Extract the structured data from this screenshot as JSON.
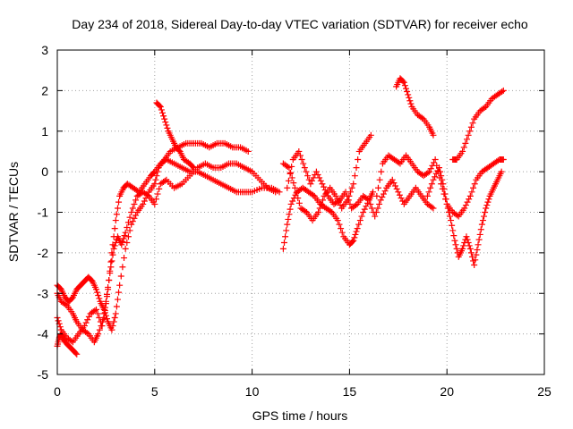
{
  "chart_data": {
    "type": "scatter",
    "title": "Day 234 of 2018, Sidereal Day-to-day VTEC variation (SDTVAR) for receiver echo",
    "xlabel": "GPS time / hours",
    "ylabel": "SDTVAR / TECUs",
    "xlim": [
      0,
      25
    ],
    "ylim": [
      -5,
      3
    ],
    "xticks": [
      "0",
      "5",
      "10",
      "15",
      "20",
      "25"
    ],
    "yticks": [
      "-5",
      "-4",
      "-3",
      "-2",
      "-1",
      "0",
      "1",
      "2",
      "3"
    ],
    "grid": true,
    "marker": "plus",
    "color": "#ff0000",
    "series": [
      {
        "x": [
          0.0,
          0.2,
          0.5,
          0.8,
          1.0,
          1.3,
          1.6,
          1.9,
          2.1,
          2.4,
          2.6,
          2.8,
          3.0,
          3.2,
          3.4,
          3.6,
          3.9,
          4.2,
          4.5,
          4.8,
          5.0,
          5.3,
          5.6,
          6.0,
          6.4,
          6.8,
          7.2,
          7.6,
          8.0,
          8.4,
          8.8,
          9.2,
          9.6,
          10.0,
          10.5,
          11.0,
          11.4
        ],
        "y": [
          -3.0,
          -3.2,
          -3.3,
          -3.5,
          -3.7,
          -3.9,
          -4.0,
          -4.2,
          -4.0,
          -3.6,
          -2.9,
          -2.0,
          -1.2,
          -0.6,
          -0.4,
          -0.3,
          -0.4,
          -0.5,
          -0.3,
          -0.1,
          0.0,
          0.2,
          0.3,
          0.2,
          0.1,
          0.0,
          0.0,
          -0.1,
          -0.2,
          -0.3,
          -0.4,
          -0.5,
          -0.5,
          -0.5,
          -0.4,
          -0.4,
          -0.5
        ]
      },
      {
        "x": [
          0.0,
          0.2,
          0.5,
          0.8,
          1.1,
          1.4,
          1.7,
          2.0,
          2.3,
          2.5,
          2.7,
          2.9,
          3.1,
          3.3,
          3.5,
          3.8,
          4.1,
          4.4,
          4.7,
          5.0,
          5.3,
          5.6,
          6.0,
          6.4,
          6.8,
          7.2,
          7.6,
          8.0,
          8.4,
          8.8,
          9.2,
          9.6,
          10.0,
          10.4,
          10.8,
          11.2
        ],
        "y": [
          -3.6,
          -3.9,
          -4.1,
          -4.2,
          -4.0,
          -3.8,
          -3.5,
          -3.4,
          -3.8,
          -3.2,
          -2.5,
          -1.9,
          -1.6,
          -1.8,
          -1.5,
          -1.0,
          -0.6,
          -0.5,
          -0.6,
          -0.8,
          -0.3,
          -0.2,
          -0.4,
          -0.3,
          -0.1,
          0.1,
          0.2,
          0.1,
          0.1,
          0.2,
          0.2,
          0.1,
          0.0,
          -0.2,
          -0.4,
          -0.5
        ]
      },
      {
        "x": [
          0.0,
          0.2,
          0.4,
          0.6,
          0.8,
          1.0,
          1.2,
          1.4,
          1.6,
          1.8,
          2.0,
          2.2,
          2.4,
          2.6,
          2.8,
          3.0,
          3.2,
          3.5,
          3.8,
          4.1,
          4.4,
          4.7,
          5.0,
          5.2,
          5.5,
          5.8,
          6.2,
          6.6,
          7.0,
          7.4,
          7.8,
          8.2,
          8.6,
          9.0,
          9.4,
          9.8
        ],
        "y": [
          -2.8,
          -2.9,
          -3.1,
          -3.2,
          -3.1,
          -2.9,
          -2.8,
          -2.7,
          -2.6,
          -2.7,
          -2.9,
          -3.2,
          -3.4,
          -3.7,
          -3.9,
          -3.5,
          -2.8,
          -1.9,
          -1.3,
          -1.0,
          -0.8,
          -0.5,
          -0.3,
          0.1,
          0.3,
          0.5,
          0.6,
          0.7,
          0.7,
          0.7,
          0.6,
          0.7,
          0.7,
          0.6,
          0.6,
          0.5
        ]
      },
      {
        "x": [
          0.0,
          0.1,
          0.2,
          0.3,
          0.4,
          0.6,
          0.8,
          1.0
        ],
        "y": [
          -4.3,
          -4.1,
          -4.0,
          -4.1,
          -4.2,
          -4.3,
          -4.4,
          -4.5
        ]
      },
      {
        "x": [
          5.1,
          5.3,
          5.5,
          5.7,
          5.9,
          6.1,
          6.3,
          6.5,
          6.8,
          7.0
        ],
        "y": [
          1.7,
          1.6,
          1.3,
          1.0,
          0.8,
          0.6,
          0.5,
          0.3,
          0.2,
          0.1
        ]
      },
      {
        "x": [
          11.6,
          11.8,
          12.0,
          12.3,
          12.6,
          12.9,
          13.2,
          13.5,
          13.8,
          14.1,
          14.4,
          14.7,
          15.0,
          15.2,
          15.4,
          15.7,
          16.0,
          16.2
        ],
        "y": [
          -1.9,
          -1.3,
          -0.8,
          -0.5,
          -0.4,
          -0.5,
          -0.6,
          -0.8,
          -0.9,
          -1.0,
          -1.2,
          -1.6,
          -1.8,
          -1.7,
          -1.4,
          -1.0,
          -0.7,
          -0.5
        ]
      },
      {
        "x": [
          11.6,
          11.9,
          12.2,
          12.5,
          12.8,
          13.1,
          13.4,
          13.7,
          14.0,
          14.3,
          14.6,
          14.9,
          15.2,
          15.5,
          15.8,
          16.1
        ],
        "y": [
          0.2,
          0.1,
          -0.4,
          -0.9,
          -1.0,
          -1.2,
          -1.0,
          -0.6,
          -0.4,
          -0.6,
          -0.9,
          -0.7,
          -0.3,
          0.5,
          0.7,
          0.9
        ]
      },
      {
        "x": [
          11.8,
          12.1,
          12.4,
          12.7,
          13.0,
          13.3,
          13.6,
          13.9,
          14.2,
          14.5,
          14.8,
          15.1,
          15.4,
          15.7,
          16.0,
          16.3,
          16.6,
          16.9,
          17.2,
          17.5,
          17.8,
          18.1,
          18.4,
          18.7,
          19.0,
          19.3
        ],
        "y": [
          -0.4,
          0.3,
          0.5,
          0.1,
          -0.3,
          0.0,
          -0.3,
          -0.6,
          -0.8,
          -0.7,
          -0.5,
          -0.9,
          -0.8,
          -0.6,
          -0.7,
          -1.1,
          -0.7,
          -0.4,
          -0.2,
          -0.5,
          -0.8,
          -0.6,
          -0.4,
          -0.6,
          -0.8,
          -0.9
        ]
      },
      {
        "x": [
          16.4,
          16.7,
          17.0,
          17.3,
          17.6,
          17.9,
          18.2,
          18.5,
          18.8,
          19.1,
          19.4,
          19.7,
          20.0,
          20.3,
          20.6,
          20.9,
          21.2,
          21.5,
          21.8,
          22.1,
          22.4,
          22.7,
          22.9
        ],
        "y": [
          -0.6,
          0.2,
          0.4,
          0.3,
          0.2,
          0.4,
          0.2,
          0.0,
          -0.1,
          0.0,
          0.3,
          -0.3,
          -0.8,
          -1.0,
          -1.1,
          -0.9,
          -0.6,
          -0.2,
          0.0,
          0.1,
          0.2,
          0.3,
          0.3
        ]
      },
      {
        "x": [
          17.4,
          17.6,
          17.8,
          18.0,
          18.2,
          18.5,
          18.8,
          19.1,
          19.3
        ],
        "y": [
          2.1,
          2.3,
          2.2,
          1.9,
          1.6,
          1.4,
          1.3,
          1.1,
          0.9
        ]
      },
      {
        "x": [
          20.3,
          20.5,
          20.8,
          21.1,
          21.4,
          21.7,
          22.0,
          22.3,
          22.6,
          22.9
        ],
        "y": [
          0.3,
          0.3,
          0.5,
          0.9,
          1.3,
          1.5,
          1.6,
          1.8,
          1.9,
          2.0
        ]
      },
      {
        "x": [
          19.0,
          19.3,
          19.6,
          19.8,
          20.0,
          20.2,
          20.4,
          20.6,
          20.8,
          21.0,
          21.2,
          21.4,
          21.6,
          21.8,
          22.0,
          22.2,
          22.4,
          22.6,
          22.8
        ],
        "y": [
          -0.6,
          -0.2,
          0.1,
          -0.3,
          -0.8,
          -1.2,
          -1.7,
          -2.1,
          -1.9,
          -1.6,
          -1.9,
          -2.3,
          -1.8,
          -1.3,
          -0.9,
          -0.6,
          -0.4,
          -0.2,
          0.0
        ]
      }
    ]
  }
}
